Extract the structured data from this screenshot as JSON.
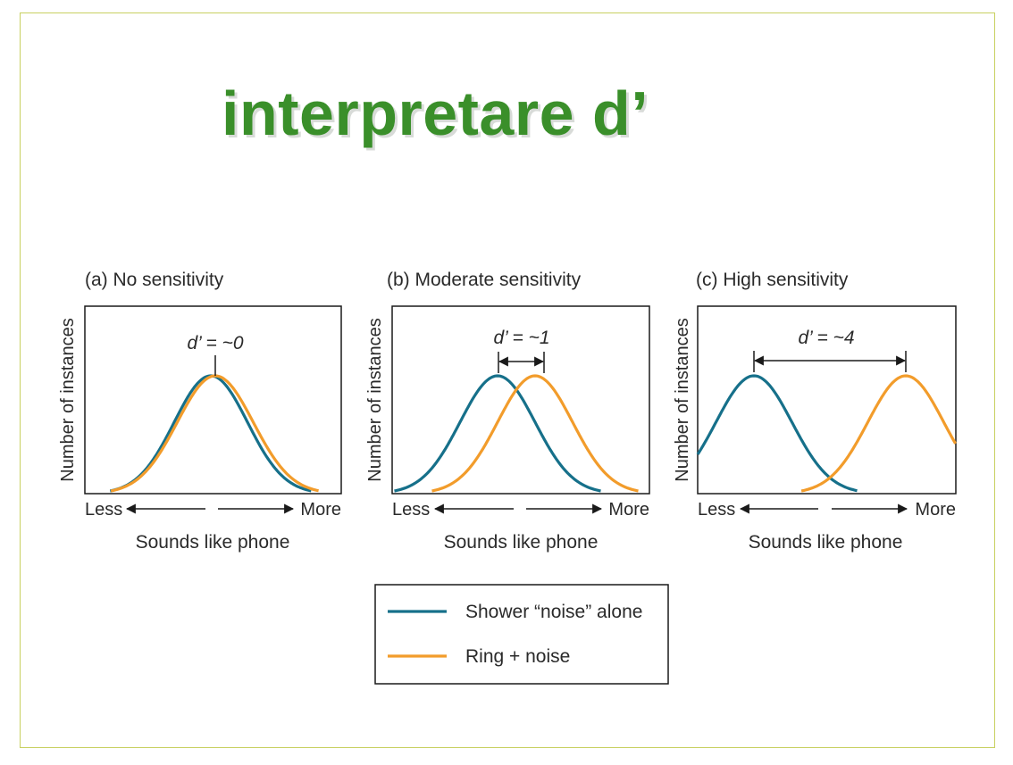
{
  "title": "interpretare d’",
  "colors": {
    "title": "#3a8f2a",
    "noise_curve": "#16708a",
    "signal_curve": "#f29c2b",
    "frame": "#c8d060"
  },
  "panels": [
    {
      "heading": "(a) No sensitivity",
      "dprime_label": "d’ = ~0",
      "dprime": 0,
      "y_axis_label": "Number of instances",
      "x_axis_label": "Sounds like phone",
      "less_label": "Less",
      "more_label": "More"
    },
    {
      "heading": "(b)  Moderate sensitivity",
      "dprime_label": "d’ = ~1",
      "dprime": 1,
      "y_axis_label": "Number of instances",
      "x_axis_label": "Sounds like phone",
      "less_label": "Less",
      "more_label": "More"
    },
    {
      "heading": "(c)  High sensitivity",
      "dprime_label": "d’ = ~4",
      "dprime": 4,
      "y_axis_label": "Number of instances",
      "x_axis_label": "Sounds like phone",
      "less_label": "Less",
      "more_label": "More"
    }
  ],
  "legend": {
    "noise_label": "Shower “noise” alone",
    "signal_label": "Ring + noise"
  }
}
